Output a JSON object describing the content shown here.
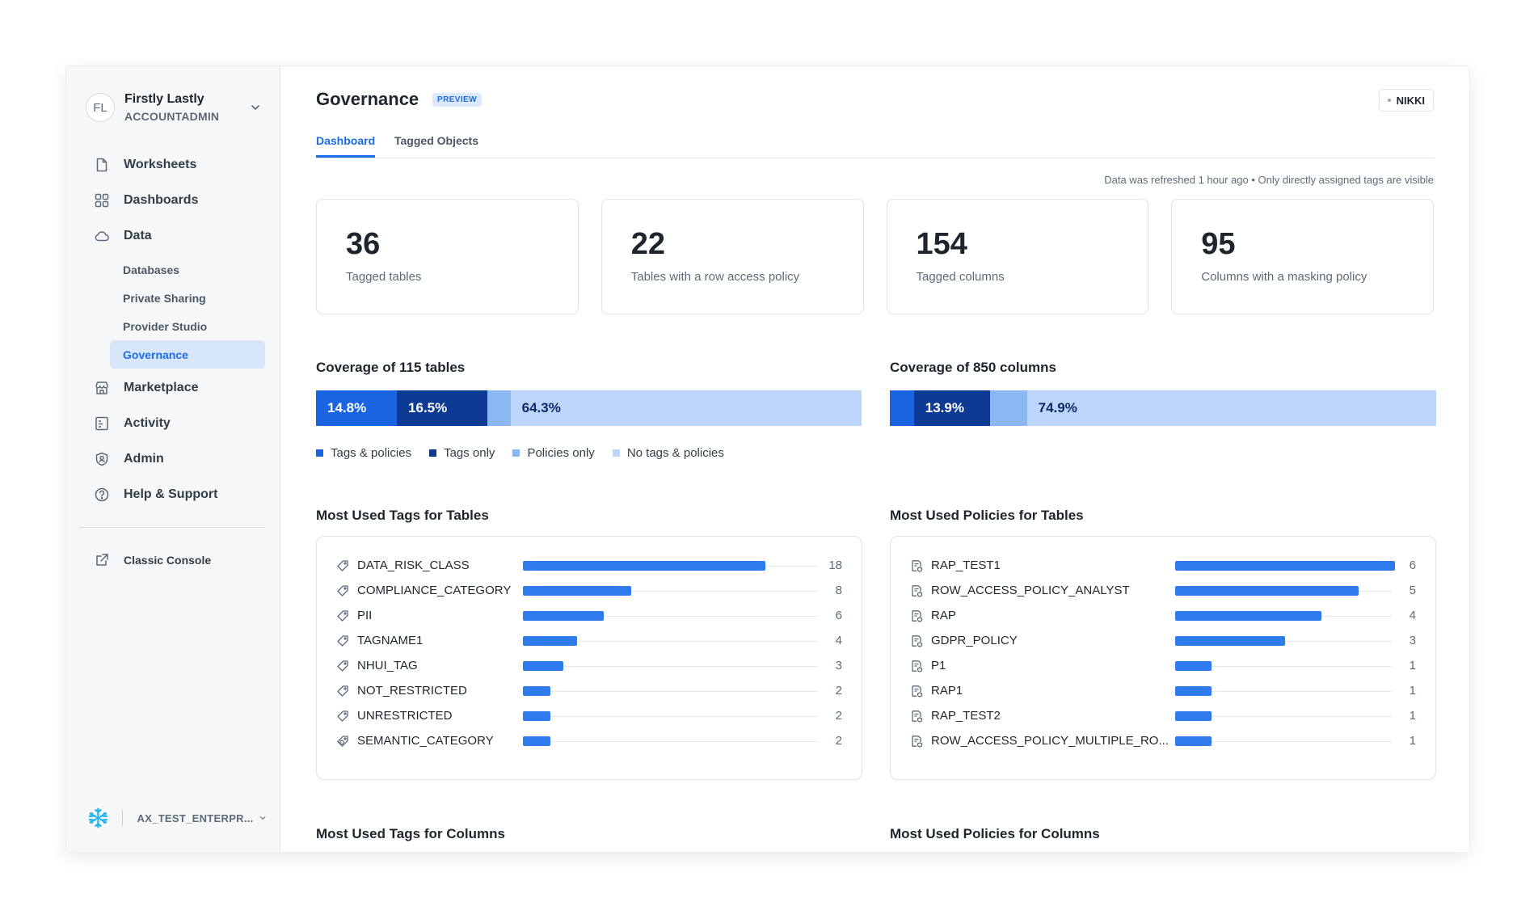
{
  "user": {
    "initials": "FL",
    "name": "Firstly Lastly",
    "role": "ACCOUNTADMIN"
  },
  "nav": {
    "worksheets": "Worksheets",
    "dashboards": "Dashboards",
    "data": "Data",
    "databases": "Databases",
    "private_sharing": "Private Sharing",
    "provider_studio": "Provider Studio",
    "governance": "Governance",
    "marketplace": "Marketplace",
    "activity": "Activity",
    "admin": "Admin",
    "help": "Help & Support",
    "classic_console": "Classic Console"
  },
  "account": {
    "name": "AX_TEST_ENTERPR..."
  },
  "header": {
    "title": "Governance",
    "badge": "PREVIEW",
    "role_chip": "NIKKI"
  },
  "tabs": {
    "dashboard": "Dashboard",
    "tagged_objects": "Tagged Objects"
  },
  "refresh_note": "Data was refreshed 1 hour ago • Only directly assigned tags are visible",
  "stats": [
    {
      "value": "36",
      "label": "Tagged tables"
    },
    {
      "value": "22",
      "label": "Tables with a row access policy"
    },
    {
      "value": "154",
      "label": "Tagged columns"
    },
    {
      "value": "95",
      "label": "Columns with a masking policy"
    }
  ],
  "colors": {
    "tags_and_policies": "#1a64e2",
    "tags_only": "#0d3b94",
    "policies_only": "#8cb7f5",
    "no_tags_policies": "#bcd6fb"
  },
  "coverage_tables": {
    "title": "Coverage of 115 tables",
    "segments": [
      {
        "key": "tags_and_policies",
        "pct": 14.8,
        "label": "14.8%"
      },
      {
        "key": "tags_only",
        "pct": 16.5,
        "label": "16.5%"
      },
      {
        "key": "policies_only",
        "pct": 4.3,
        "label": ""
      },
      {
        "key": "no_tags_policies",
        "pct": 64.3,
        "label": "64.3%"
      }
    ]
  },
  "coverage_columns": {
    "title": "Coverage of 850 columns",
    "segments": [
      {
        "key": "tags_and_policies",
        "pct": 4.4,
        "label": ""
      },
      {
        "key": "tags_only",
        "pct": 13.9,
        "label": "13.9%"
      },
      {
        "key": "policies_only",
        "pct": 6.8,
        "label": ""
      },
      {
        "key": "no_tags_policies",
        "pct": 74.9,
        "label": "74.9%"
      }
    ]
  },
  "legend": {
    "tags_and_policies": "Tags & policies",
    "tags_only": "Tags only",
    "policies_only": "Policies only",
    "no_tags_policies": "No tags & policies"
  },
  "sections": {
    "tags_tables": "Most Used Tags for Tables",
    "policies_tables": "Most Used Policies for Tables",
    "tags_columns": "Most Used Tags for Columns",
    "policies_columns": "Most Used Policies for Columns"
  },
  "chart_data": [
    {
      "type": "bar",
      "title": "Most Used Tags for Tables",
      "orientation": "horizontal",
      "categories": [
        "DATA_RISK_CLASS",
        "COMPLIANCE_CATEGORY",
        "PII",
        "TAGNAME1",
        "NHUI_TAG",
        "NOT_RESTRICTED",
        "UNRESTRICTED",
        "SEMANTIC_CATEGORY"
      ],
      "values": [
        18,
        8,
        6,
        4,
        3,
        2,
        2,
        2
      ],
      "icons": [
        "tag-icon",
        "tag-icon",
        "tag-icon",
        "tag-icon",
        "tag-icon",
        "tag-icon",
        "tag-icon",
        "semantic-tag-icon"
      ]
    },
    {
      "type": "bar",
      "title": "Most Used Policies for Tables",
      "orientation": "horizontal",
      "categories": [
        "RAP_TEST1",
        "ROW_ACCESS_POLICY_ANALYST",
        "RAP",
        "GDPR_POLICY",
        "P1",
        "RAP1",
        "RAP_TEST2",
        "ROW_ACCESS_POLICY_MULTIPLE_RO..."
      ],
      "values": [
        6,
        5,
        4,
        3,
        1,
        1,
        1,
        1
      ],
      "icons": [
        "policy-icon",
        "policy-icon",
        "policy-icon",
        "policy-icon",
        "policy-icon",
        "policy-icon",
        "policy-icon",
        "policy-icon"
      ]
    }
  ]
}
